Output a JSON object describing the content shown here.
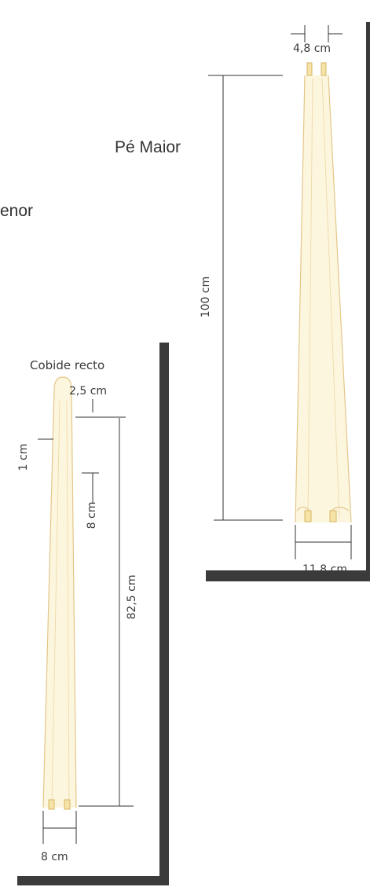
{
  "labels": {
    "pe_maior": "Pé Maior",
    "pe_menor_partial": "enor",
    "cobide_recto": "Cobide recto"
  },
  "pe_maior": {
    "top_width": "4,8 cm",
    "length": "100 cm",
    "bottom_width": "11,8 cm"
  },
  "cobide": {
    "offset_top": "2,5 cm",
    "side_width": "1 cm",
    "inner_offset": "8 cm",
    "length": "82,5 cm",
    "bottom_width": "8 cm"
  },
  "colors": {
    "wood_fill": "#fdf6df",
    "wood_edge": "#e2c789",
    "shadow": "#3b3b3b"
  }
}
